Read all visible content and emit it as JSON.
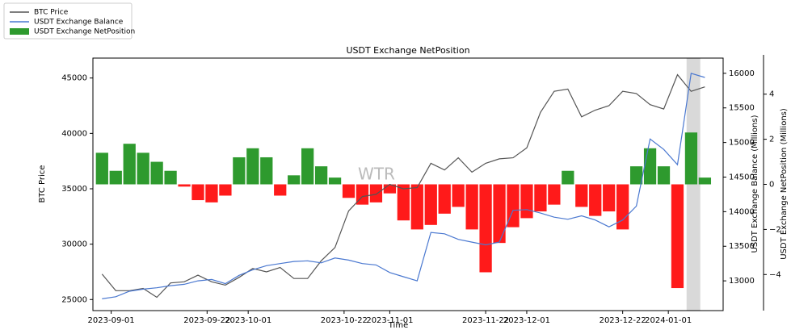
{
  "chart_data": {
    "type": "combo",
    "title": "USDT Exchange NetPosition",
    "xlabel": "Time",
    "ylabel": "BTC Price",
    "y2label": "USDT Exchange Balance (Millions)",
    "y3label": "USDT Exchange NetPosition (Millions)",
    "annotation": "WTR",
    "x": [
      "2023-08-30",
      "2023-09-02",
      "2023-09-05",
      "2023-09-08",
      "2023-09-11",
      "2023-09-14",
      "2023-09-17",
      "2023-09-20",
      "2023-09-23",
      "2023-09-26",
      "2023-09-29",
      "2023-10-02",
      "2023-10-05",
      "2023-10-08",
      "2023-10-11",
      "2023-10-14",
      "2023-10-17",
      "2023-10-20",
      "2023-10-23",
      "2023-10-26",
      "2023-10-29",
      "2023-11-01",
      "2023-11-04",
      "2023-11-07",
      "2023-11-10",
      "2023-11-13",
      "2023-11-16",
      "2023-11-19",
      "2023-11-22",
      "2023-11-25",
      "2023-11-28",
      "2023-12-01",
      "2023-12-04",
      "2023-12-07",
      "2023-12-10",
      "2023-12-13",
      "2023-12-16",
      "2023-12-19",
      "2023-12-22",
      "2023-12-25",
      "2023-12-28",
      "2023-12-31",
      "2024-01-03",
      "2024-01-06",
      "2024-01-09"
    ],
    "series": [
      {
        "name": "BTC Price",
        "type": "line",
        "axis": "y",
        "color": "#555555",
        "values": [
          27300,
          25800,
          25800,
          26000,
          25200,
          26500,
          26600,
          27200,
          26600,
          26300,
          27000,
          27800,
          27500,
          27900,
          26900,
          26900,
          28500,
          29700,
          33000,
          34300,
          34500,
          35400,
          35000,
          35100,
          37300,
          36700,
          37800,
          36500,
          37300,
          37700,
          37800,
          38700,
          41900,
          43800,
          44000,
          41500,
          42100,
          42500,
          43800,
          43600,
          42600,
          42200,
          45300,
          43800,
          44200
        ]
      },
      {
        "name": "USDT Exchange Balance",
        "type": "line",
        "axis": "y2",
        "color": "#4a78d0",
        "values": [
          12740,
          12770,
          12850,
          12880,
          12900,
          12930,
          12950,
          13000,
          13020,
          12960,
          13080,
          13160,
          13220,
          13250,
          13280,
          13290,
          13260,
          13330,
          13300,
          13250,
          13230,
          13120,
          13060,
          13000,
          13700,
          13680,
          13600,
          13560,
          13520,
          13560,
          14020,
          14030,
          13980,
          13920,
          13890,
          13940,
          13880,
          13780,
          13880,
          14080,
          15050,
          14900,
          14680,
          16000,
          15940
        ]
      },
      {
        "name": "USDT Exchange NetPosition",
        "type": "bar",
        "axis": "y3",
        "color": "#2e9a2e",
        "negative_color": "#ff1a1a",
        "values": [
          1.4,
          0.6,
          1.8,
          1.4,
          1.0,
          0.6,
          -0.1,
          -0.7,
          -0.8,
          -0.5,
          1.2,
          1.6,
          1.2,
          -0.5,
          0.4,
          1.6,
          0.8,
          0.3,
          -0.6,
          -0.9,
          -0.8,
          -0.4,
          -1.6,
          -2.0,
          -1.8,
          -1.3,
          -1.0,
          -2.0,
          -3.9,
          -2.6,
          -1.9,
          -1.5,
          -1.2,
          -0.9,
          0.6,
          -1.0,
          -1.4,
          -1.2,
          -2.0,
          0.8,
          1.6,
          0.8,
          -4.6,
          2.3,
          0.3
        ]
      }
    ],
    "xlim": [
      "2023-08-28",
      "2024-01-13"
    ],
    "xticks": [
      "2023-09-01",
      "2023-09-22",
      "2023-10-01",
      "2023-10-22",
      "2023-11-01",
      "2023-11-22",
      "2023-12-01",
      "2023-12-22",
      "2024-01-01"
    ],
    "ylim": [
      24000,
      46800
    ],
    "yticks": [
      25000,
      30000,
      35000,
      40000,
      45000
    ],
    "y2lim": [
      12570,
      16220
    ],
    "y2ticks": [
      13000,
      13500,
      14000,
      14500,
      15000,
      15500,
      16000
    ],
    "y3lim": [
      -5.6,
      5.6
    ],
    "y3ticks": [
      {
        "value": -4,
        "label": "−4"
      },
      {
        "value": -2,
        "label": "−2"
      },
      0,
      2,
      4
    ],
    "highlight": {
      "from": "2024-01-05",
      "to": "2024-01-08",
      "color": "#d9d9d9"
    },
    "legend": "upper left"
  }
}
